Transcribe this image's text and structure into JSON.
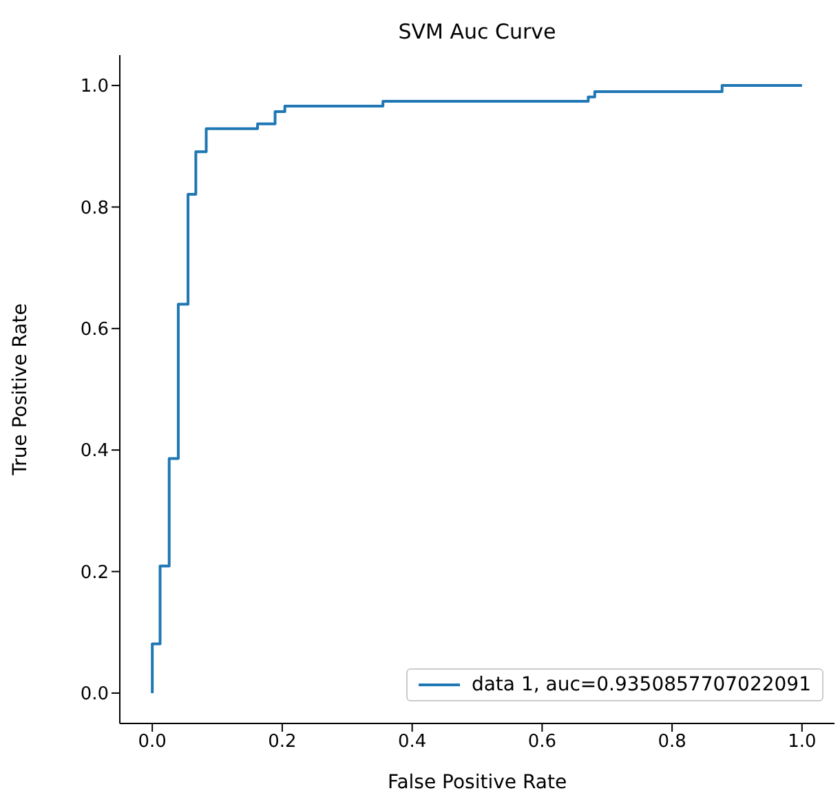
{
  "chart_data": {
    "type": "line",
    "title": "SVM Auc Curve",
    "xlabel": "False Positive Rate",
    "ylabel": "True Positive Rate",
    "x": [
      0,
      0,
      0.012,
      0.012,
      0.026,
      0.026,
      0.04,
      0.04,
      0.055,
      0.055,
      0.067,
      0.067,
      0.083,
      0.083,
      0.162,
      0.162,
      0.189,
      0.189,
      0.204,
      0.204,
      0.355,
      0.355,
      0.671,
      0.671,
      0.681,
      0.681,
      0.877,
      0.877,
      1.0
    ],
    "series": [
      {
        "name": "data 1, auc=0.9350857707022091",
        "color": "#1f77b4",
        "values": [
          0,
          0.081,
          0.081,
          0.209,
          0.209,
          0.386,
          0.386,
          0.64,
          0.64,
          0.821,
          0.821,
          0.891,
          0.891,
          0.929,
          0.929,
          0.937,
          0.937,
          0.957,
          0.957,
          0.966,
          0.966,
          0.974,
          0.974,
          0.981,
          0.981,
          0.99,
          0.99,
          1.0,
          1.0
        ]
      }
    ],
    "xlim": [
      -0.05,
      1.05
    ],
    "ylim": [
      -0.05,
      1.05
    ],
    "xticks": [
      {
        "value": 0,
        "label": "0.0"
      },
      {
        "value": 0.2,
        "label": "0.2"
      },
      {
        "value": 0.4,
        "label": "0.4"
      },
      {
        "value": 0.6,
        "label": "0.6"
      },
      {
        "value": 0.8,
        "label": "0.8"
      },
      {
        "value": 1,
        "label": "1.0"
      }
    ],
    "yticks": [
      {
        "value": 0,
        "label": "0.0"
      },
      {
        "value": 0.2,
        "label": "0.2"
      },
      {
        "value": 0.4,
        "label": "0.4"
      },
      {
        "value": 0.6,
        "label": "0.6"
      },
      {
        "value": 0.8,
        "label": "0.8"
      },
      {
        "value": 1,
        "label": "1.0"
      }
    ],
    "legend": "bottom right",
    "grid": false
  }
}
